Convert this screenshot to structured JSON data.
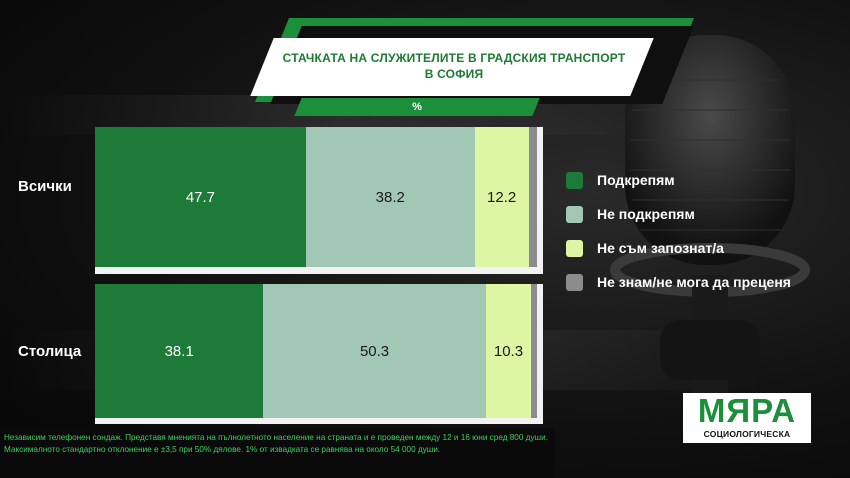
{
  "title": {
    "text": "СТАЧКАТА НА СЛУЖИТЕЛИТЕ В ГРАДСКИЯ ТРАНСПОРТ В СОФИЯ",
    "unit": "%"
  },
  "colors": {
    "support": "#1e7a38",
    "not_support": "#a3c7b5",
    "not_aware": "#ddf6a3",
    "dont_know": "#8c8c8c",
    "brand": "#1b8f3a"
  },
  "chart_data": {
    "type": "bar",
    "orientation": "horizontal",
    "stacked": true,
    "categories": [
      "Всички",
      "Столица"
    ],
    "series": [
      {
        "name": "Подкрепям",
        "values": [
          47.7,
          38.1
        ],
        "color": "#1e7a38"
      },
      {
        "name": "Не подкрепям",
        "values": [
          38.2,
          50.3
        ],
        "color": "#a3c7b5"
      },
      {
        "name": "Не съм запознат/а",
        "values": [
          12.2,
          10.3
        ],
        "color": "#ddf6a3"
      },
      {
        "name": "Не знам/не мога да преценя",
        "values": [
          1.9,
          1.3
        ],
        "color": "#8c8c8c"
      }
    ],
    "data_labels": [
      [
        "47.7",
        "38.2",
        "12.2",
        ""
      ],
      [
        "38.1",
        "50.3",
        "10.3",
        ""
      ]
    ],
    "xlim": [
      0,
      100
    ],
    "legend_position": "right"
  },
  "logo": {
    "main": "МЯРА",
    "sub": "СОЦИОЛОГИЧЕСКА АГЕНЦИЯ"
  },
  "footnote": "Независим телефонен сондаж. Представя мненията на пълнолетното население на страната и е проведен между 12 и 16 юни сред 800 души. Максималното стандартно отклонение е ±3,5 при 50% дялове. 1% от извадката се равнява на около 54 000 души."
}
